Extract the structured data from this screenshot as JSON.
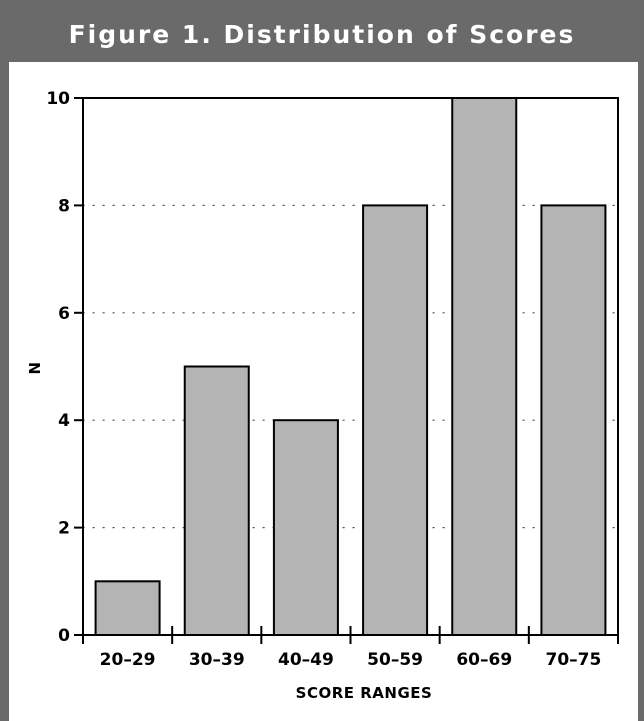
{
  "chart_data": {
    "type": "bar",
    "title": "Figure 1. Distribution of Scores",
    "xlabel": "SCORE RANGES",
    "ylabel": "N",
    "categories": [
      "20–29",
      "30–39",
      "40–49",
      "50–59",
      "60–69",
      "70–75"
    ],
    "values": [
      1,
      5,
      4,
      8,
      10,
      8
    ],
    "ylim": [
      0,
      10
    ],
    "yticks": [
      0,
      2,
      4,
      6,
      8,
      10
    ],
    "grid": true,
    "colors": {
      "bar": "#b4b4b4",
      "header": "#6a6a6a",
      "title_text": "#ffffff"
    }
  }
}
